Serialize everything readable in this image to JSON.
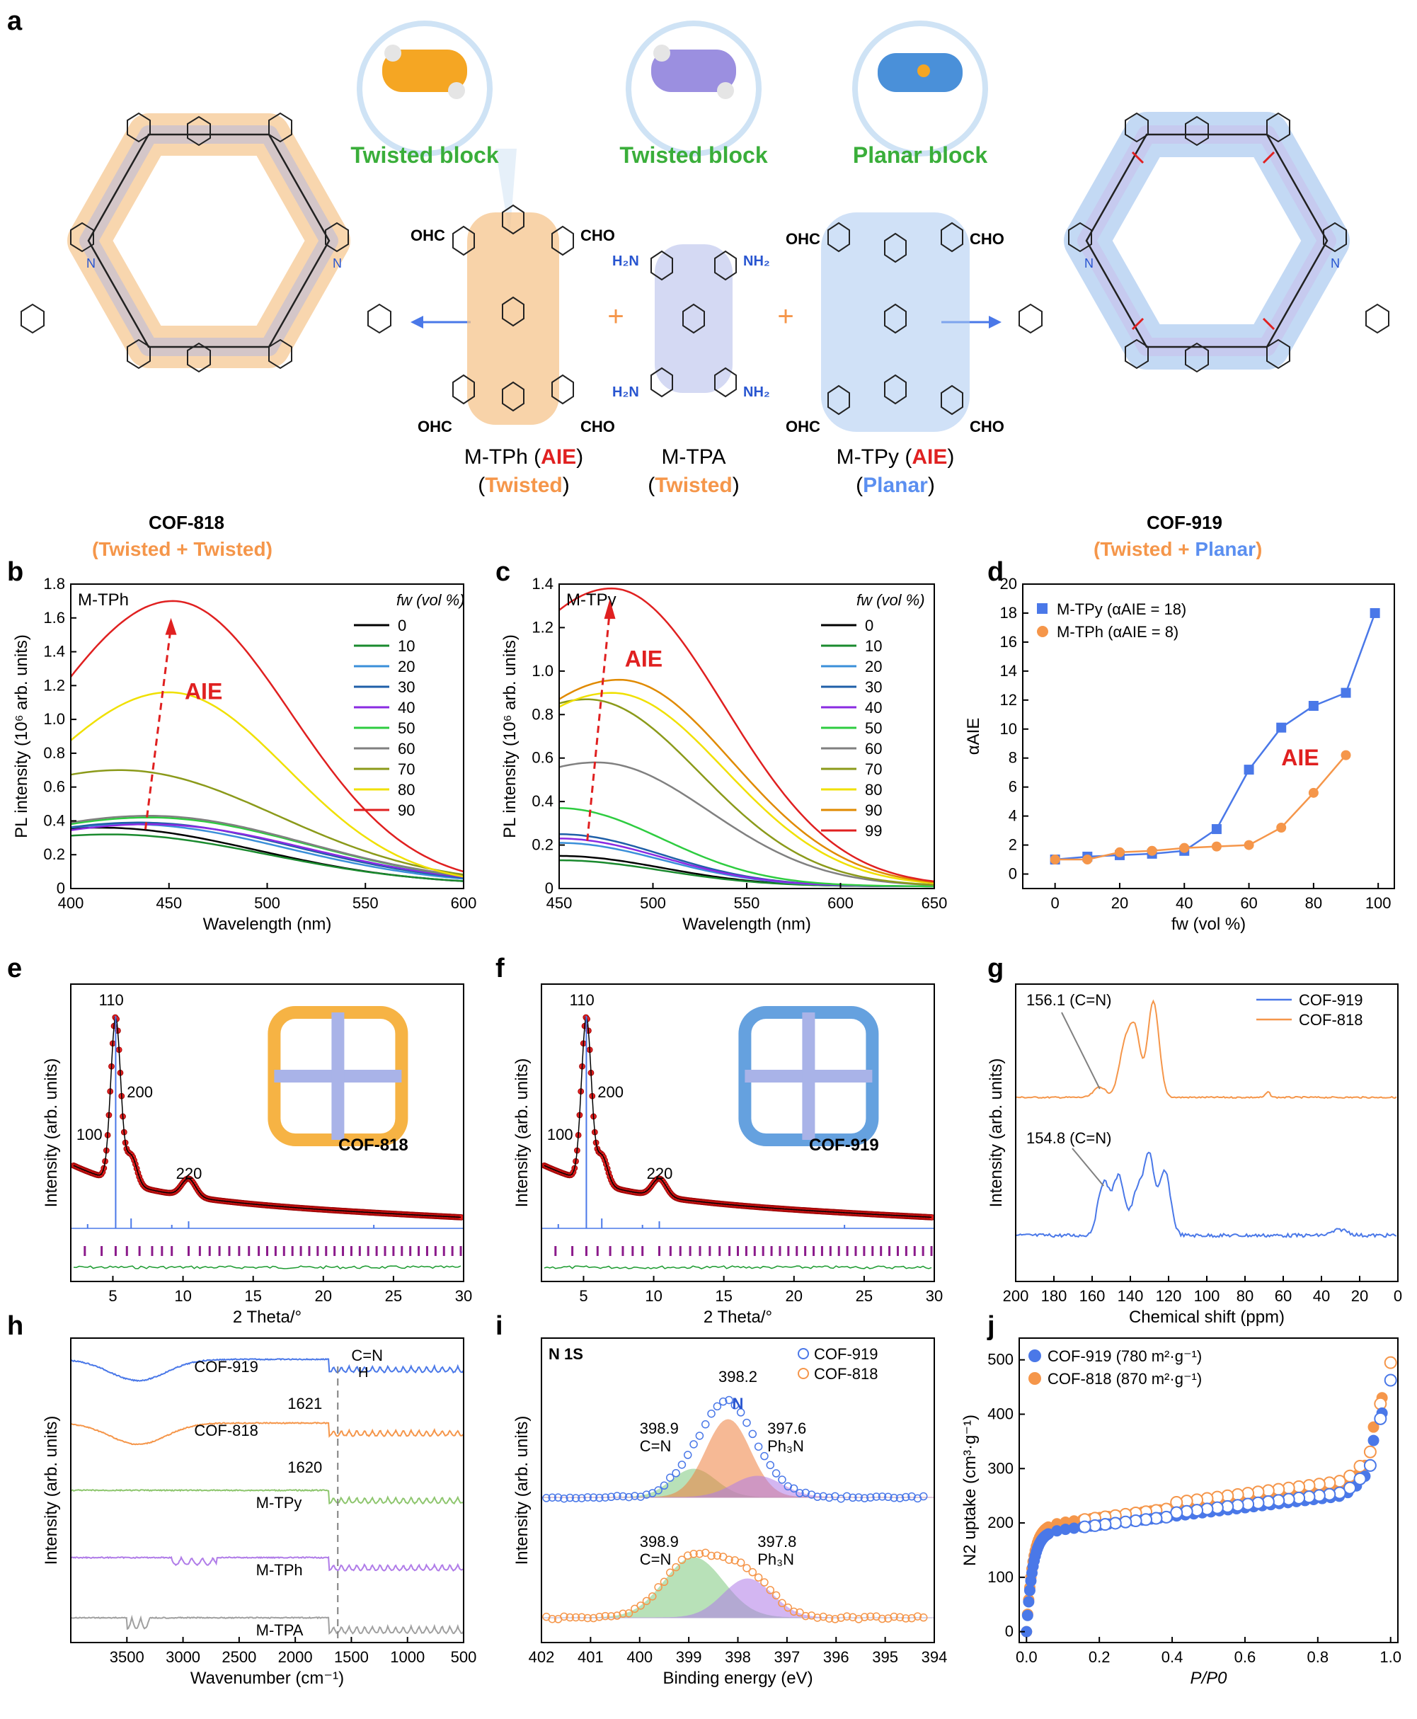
{
  "panel_letters": [
    "a",
    "b",
    "c",
    "d",
    "e",
    "f",
    "g",
    "h",
    "i",
    "j"
  ],
  "schematic": {
    "bubbles": [
      {
        "label": "Twisted block",
        "color": "#f5a623"
      },
      {
        "label": "Twisted block",
        "color": "#9b8fe0"
      },
      {
        "label": "Planar block",
        "color": "#4a90d9"
      }
    ],
    "aldehyde_label": "OHC",
    "aldehyde_label_right": "CHO",
    "amine_label": "H₂N",
    "amine_label_right": "NH₂",
    "plus": "+",
    "monomers": [
      {
        "name": "M-TPh (",
        "tag": "AIE",
        "close": ")",
        "type": "Twisted",
        "type_color": "#f5964a"
      },
      {
        "name": "M-TPA",
        "tag": "",
        "close": "",
        "type": "Twisted",
        "type_color": "#f5964a"
      },
      {
        "name": "M-TPy (",
        "tag": "AIE",
        "close": ")",
        "type": "Planar",
        "type_color": "#5b8ff0"
      }
    ],
    "cof_left": {
      "name": "COF-818",
      "type_a": "Twisted",
      "plus": " + ",
      "type_b": "Twisted"
    },
    "cof_right": {
      "name": "COF-919",
      "type_a": "Twisted",
      "plus": " + ",
      "type_b": "Planar"
    }
  },
  "panel_b": {
    "chart_data": {
      "type": "line",
      "title": "M-TPh",
      "xlabel": "Wavelength (nm)",
      "ylabel": "PL intensity (10⁶ arb. units)",
      "xlim": [
        400,
        600
      ],
      "ylim": [
        0,
        1.8
      ],
      "xticks": [
        "400",
        "450",
        "500",
        "550",
        "600"
      ],
      "yticks": [
        "0",
        "0.2",
        "0.4",
        "0.6",
        "0.8",
        "1.0",
        "1.2",
        "1.4",
        "1.6",
        "1.8"
      ],
      "legend_title": "fw (vol %)",
      "annotation": "AIE",
      "series": [
        {
          "name": "0",
          "color": "#000000",
          "peak": 0.34,
          "peak_x": 415
        },
        {
          "name": "10",
          "color": "#1a8a2e",
          "peak": 0.3,
          "peak_x": 420
        },
        {
          "name": "20",
          "color": "#3a8fd9",
          "peak": 0.36,
          "peak_x": 430
        },
        {
          "name": "30",
          "color": "#1f5fa8",
          "peak": 0.37,
          "peak_x": 435
        },
        {
          "name": "40",
          "color": "#8a2be2",
          "peak": 0.36,
          "peak_x": 440
        },
        {
          "name": "50",
          "color": "#2ecc40",
          "peak": 0.4,
          "peak_x": 440
        },
        {
          "name": "60",
          "color": "#808080",
          "peak": 0.41,
          "peak_x": 440
        },
        {
          "name": "70",
          "color": "#8b9a1a",
          "peak": 0.68,
          "peak_x": 425
        },
        {
          "name": "80",
          "color": "#f0e000",
          "peak": 1.14,
          "peak_x": 450
        },
        {
          "name": "90",
          "color": "#e02020",
          "peak": 1.68,
          "peak_x": 452
        }
      ]
    }
  },
  "panel_c": {
    "chart_data": {
      "type": "line",
      "title": "M-TPy",
      "xlabel": "Wavelength (nm)",
      "ylabel": "PL intensity (10⁶ arb. units)",
      "xlim": [
        450,
        650
      ],
      "ylim": [
        0,
        1.4
      ],
      "xticks": [
        "450",
        "500",
        "550",
        "600",
        "650"
      ],
      "yticks": [
        "0",
        "0.2",
        "0.4",
        "0.6",
        "0.8",
        "1.0",
        "1.2",
        "1.4"
      ],
      "legend_title": "fw (vol %)",
      "annotation": "AIE",
      "series": [
        {
          "name": "0",
          "color": "#000000",
          "peak": 0.14,
          "peak_x": 450
        },
        {
          "name": "10",
          "color": "#1a8a2e",
          "peak": 0.12,
          "peak_x": 450
        },
        {
          "name": "20",
          "color": "#3a8fd9",
          "peak": 0.2,
          "peak_x": 450
        },
        {
          "name": "30",
          "color": "#1f5fa8",
          "peak": 0.24,
          "peak_x": 450
        },
        {
          "name": "40",
          "color": "#8a2be2",
          "peak": 0.22,
          "peak_x": 450
        },
        {
          "name": "50",
          "color": "#2ecc40",
          "peak": 0.36,
          "peak_x": 450
        },
        {
          "name": "60",
          "color": "#808080",
          "peak": 0.57,
          "peak_x": 470
        },
        {
          "name": "70",
          "color": "#8b9a1a",
          "peak": 0.86,
          "peak_x": 465
        },
        {
          "name": "80",
          "color": "#f0e000",
          "peak": 0.89,
          "peak_x": 478
        },
        {
          "name": "90",
          "color": "#e08a00",
          "peak": 0.95,
          "peak_x": 482
        },
        {
          "name": "99",
          "color": "#e02020",
          "peak": 1.37,
          "peak_x": 478
        }
      ]
    }
  },
  "panel_d": {
    "chart_data": {
      "type": "line",
      "xlabel": "fw (vol %)",
      "ylabel": "αAIE",
      "xlim": [
        -10,
        105
      ],
      "ylim": [
        -1,
        20
      ],
      "xticks": [
        "0",
        "20",
        "40",
        "60",
        "80",
        "100"
      ],
      "yticks": [
        "0",
        "2",
        "4",
        "6",
        "8",
        "10",
        "12",
        "14",
        "16",
        "18",
        "20"
      ],
      "annotation": "AIE",
      "series": [
        {
          "name": "M-TPy (αAIE = 18)",
          "color": "#4a78e8",
          "marker": "square",
          "x": [
            0,
            10,
            20,
            30,
            40,
            50,
            60,
            70,
            80,
            90,
            99
          ],
          "y": [
            1.0,
            1.2,
            1.3,
            1.4,
            1.6,
            3.1,
            7.2,
            10.1,
            11.6,
            12.5,
            18.0
          ]
        },
        {
          "name": "M-TPh (αAIE = 8)",
          "color": "#f5964a",
          "marker": "circle",
          "x": [
            0,
            10,
            20,
            30,
            40,
            50,
            60,
            70,
            80,
            90
          ],
          "y": [
            1.0,
            1.0,
            1.5,
            1.6,
            1.8,
            1.9,
            2.0,
            3.2,
            5.6,
            8.2
          ]
        }
      ]
    }
  },
  "panel_e": {
    "chart_data": {
      "type": "line",
      "xlabel": "2 Theta/°",
      "ylabel": "Intensity (arb. units)",
      "xlim": [
        2,
        30
      ],
      "xticks": [
        "5",
        "10",
        "15",
        "20",
        "25",
        "30"
      ],
      "peak_labels": [
        "100",
        "110",
        "200",
        "220"
      ],
      "inset_label": "COF-818",
      "peaks_2theta": [
        3.0,
        5.2,
        6.2,
        10.4
      ]
    }
  },
  "panel_f": {
    "chart_data": {
      "type": "line",
      "xlabel": "2 Theta/°",
      "ylabel": "Intensity (arb. units)",
      "xlim": [
        2,
        30
      ],
      "xticks": [
        "5",
        "10",
        "15",
        "20",
        "25",
        "30"
      ],
      "peak_labels": [
        "100",
        "110",
        "200",
        "220"
      ],
      "inset_label": "COF-919",
      "peaks_2theta": [
        3.0,
        5.2,
        6.2,
        10.4
      ]
    }
  },
  "panel_g": {
    "chart_data": {
      "type": "line",
      "xlabel": "Chemical shift (ppm)",
      "ylabel": "Intensity (arb. units)",
      "xlim": [
        200,
        0
      ],
      "xticks": [
        "200",
        "180",
        "160",
        "140",
        "120",
        "100",
        "80",
        "60",
        "40",
        "20",
        "0"
      ],
      "series": [
        {
          "name": "COF-919",
          "color": "#4a78e8"
        },
        {
          "name": "COF-818",
          "color": "#f5964a"
        }
      ],
      "annotations": [
        "156.1 (C=N)",
        "154.8 (C=N)"
      ]
    }
  },
  "panel_h": {
    "chart_data": {
      "type": "line",
      "xlabel": "Wavenumber (cm⁻¹)",
      "ylabel": "Intensity (arb. units)",
      "xlim": [
        4000,
        500
      ],
      "xticks": [
        "3500",
        "3000",
        "2500",
        "2000",
        "1500",
        "1000",
        "500"
      ],
      "series": [
        {
          "name": "COF-919",
          "color": "#4a78e8"
        },
        {
          "name": "COF-818",
          "color": "#f5964a"
        },
        {
          "name": "M-TPy",
          "color": "#8ec66e"
        },
        {
          "name": "M-TPh",
          "color": "#b07ce8"
        },
        {
          "name": "M-TPA",
          "color": "#a0a0a0"
        }
      ],
      "annotations": [
        "1621",
        "1620"
      ],
      "group_label_a": "C=N",
      "group_label_b": "H"
    }
  },
  "panel_i": {
    "chart_data": {
      "type": "scatter",
      "title": "N 1S",
      "xlabel": "Binding energy (eV)",
      "ylabel": "Intensity (arb. units)",
      "xlim": [
        402,
        394
      ],
      "xticks": [
        "402",
        "401",
        "400",
        "399",
        "398",
        "397",
        "396",
        "395",
        "394"
      ],
      "series": [
        {
          "name": "COF-919",
          "color": "#4a78e8"
        },
        {
          "name": "COF-818",
          "color": "#f5964a"
        }
      ],
      "labels_919": [
        "398.2",
        "398.9",
        "C=N",
        "397.6",
        "Ph₃N",
        "N"
      ],
      "labels_818": [
        "398.9",
        "C=N",
        "397.8",
        "Ph₃N"
      ]
    }
  },
  "panel_j": {
    "chart_data": {
      "type": "scatter",
      "xlabel": "P/P0",
      "ylabel": "N2 uptake (cm³·g⁻¹)",
      "xlim": [
        0,
        1.0
      ],
      "ylim": [
        0,
        500
      ],
      "xticks": [
        "0.0",
        "0.2",
        "0.4",
        "0.6",
        "0.8",
        "1.0"
      ],
      "yticks": [
        "0",
        "100",
        "200",
        "300",
        "400",
        "500"
      ],
      "series": [
        {
          "name": "COF-919 (780 m²·g⁻¹)",
          "color": "#4a78e8"
        },
        {
          "name": "COF-818 (870 m²·g⁻¹)",
          "color": "#f5964a"
        }
      ]
    }
  }
}
